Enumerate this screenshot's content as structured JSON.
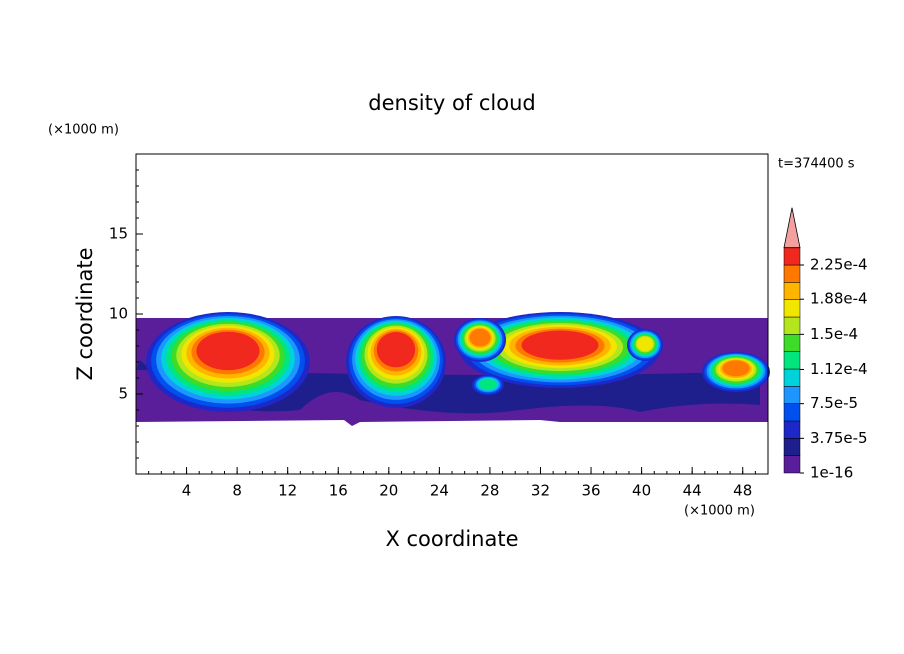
{
  "chart_data": {
    "type": "contour",
    "title": "density of cloud",
    "x_label": "X coordinate",
    "y_label": "Z coordinate",
    "x_unit": "(×1000 m)",
    "y_unit": "(×1000 m)",
    "annotation": "t=374400 s",
    "xlim": [
      0,
      50
    ],
    "xticks": [
      4,
      8,
      12,
      16,
      20,
      24,
      28,
      32,
      36,
      40,
      44,
      48
    ],
    "ylim": [
      0,
      20
    ],
    "yticks": [
      5,
      10,
      15
    ],
    "clim": [
      1e-16,
      0.000225
    ],
    "cticks": [
      {
        "value": 1e-16,
        "label": "1e-16"
      },
      {
        "value": 3.75e-05,
        "label": "3.75e-5"
      },
      {
        "value": 7.5e-05,
        "label": "7.5e-5"
      },
      {
        "value": 0.000112,
        "label": "1.12e-4"
      },
      {
        "value": 0.00015,
        "label": "1.5e-4"
      },
      {
        "value": 0.000188,
        "label": "1.88e-4"
      },
      {
        "value": 0.000225,
        "label": "2.25e-4"
      }
    ],
    "colors": [
      "#5a1e9b",
      "#1e1e8c",
      "#1e28c8",
      "#0050f0",
      "#1e96ff",
      "#00d2dc",
      "#00e67d",
      "#3cdc28",
      "#b4e61e",
      "#f0e600",
      "#ffb400",
      "#ff7800",
      "#f0281e"
    ],
    "extend_color": "#f4a0a0"
  }
}
